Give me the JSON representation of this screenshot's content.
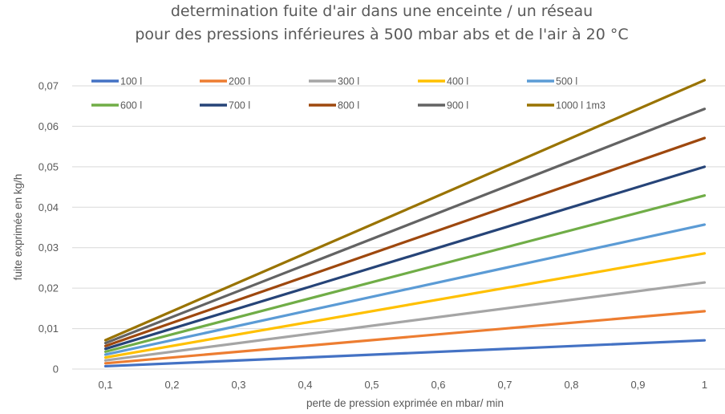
{
  "chart_data": {
    "type": "line",
    "title": [
      "determination fuite d'air  dans une enceinte / un réseau",
      "pour des pressions inférieures à  500 mbar abs  et de l'air à 20 °C"
    ],
    "xlabel": "perte de pression exprimée en mbar/ min",
    "ylabel": "fuite exprimée en kg/h",
    "x": [
      0.1,
      1
    ],
    "x_tick_values": [
      0.1,
      0.2,
      0.3,
      0.4,
      0.5,
      0.6,
      0.7,
      0.8,
      0.9,
      1
    ],
    "x_tick_labels": [
      "0,1",
      "0,2",
      "0,3",
      "0,4",
      "0,5",
      "0,6",
      "0,7",
      "0,8",
      "0,9",
      "1"
    ],
    "xlim": [
      0.05,
      1.05
    ],
    "ylim": [
      0,
      0.07
    ],
    "y_tick_values": [
      0,
      0.01,
      0.02,
      0.03,
      0.04,
      0.05,
      0.06,
      0.07
    ],
    "y_tick_labels": [
      "0",
      "0,01",
      "0,02",
      "0,03",
      "0,04",
      "0,05",
      "0,06",
      "0,07"
    ],
    "grid": "horizontal",
    "legend_position": "top",
    "series": [
      {
        "name": "100 l",
        "color": "#4472C4",
        "values": [
          0.00071,
          0.0071
        ]
      },
      {
        "name": "200 l",
        "color": "#ED7D31",
        "values": [
          0.00143,
          0.0143
        ]
      },
      {
        "name": "300 l",
        "color": "#A5A5A5",
        "values": [
          0.00214,
          0.0214
        ]
      },
      {
        "name": "400 l",
        "color": "#FFC000",
        "values": [
          0.00286,
          0.0286
        ]
      },
      {
        "name": "500 l",
        "color": "#5B9BD5",
        "values": [
          0.00357,
          0.0357
        ]
      },
      {
        "name": "600 l",
        "color": "#70AD47",
        "values": [
          0.00429,
          0.0429
        ]
      },
      {
        "name": "700 l",
        "color": "#264478",
        "values": [
          0.005,
          0.05
        ]
      },
      {
        "name": "800 l",
        "color": "#9E480E",
        "values": [
          0.00571,
          0.0571
        ]
      },
      {
        "name": "900 l",
        "color": "#636363",
        "values": [
          0.00643,
          0.0643
        ]
      },
      {
        "name": "1000 l 1m3",
        "color": "#997300",
        "values": [
          0.00714,
          0.0714
        ]
      }
    ]
  }
}
